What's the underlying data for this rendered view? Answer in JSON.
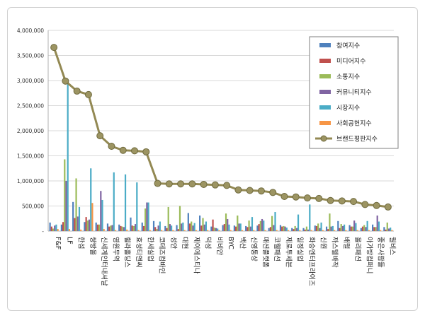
{
  "chart_data": {
    "type": "bar",
    "title": "",
    "xlabel": "",
    "ylabel": "",
    "ylim": [
      0,
      4000000
    ],
    "yticks": [
      0,
      500000,
      1000000,
      1500000,
      2000000,
      2500000,
      3000000,
      3500000,
      4000000
    ],
    "ytick_labels": [
      "-",
      "500,000",
      "1,000,000",
      "1,500,000",
      "2,000,000",
      "2,500,000",
      "3,000,000",
      "3,500,000",
      "4,000,000"
    ],
    "grid": true,
    "legend_position": "top-right",
    "categories": [
      "F&F",
      "LF",
      "한섬",
      "쌍방울",
      "신세계인터내셔날",
      "영원무역",
      "휠라홀딩스",
      "효성티앤씨",
      "한세실업",
      "코데즈컴바인",
      "성안",
      "대현",
      "제이에스티나",
      "덕성",
      "비비안",
      "BYC",
      "백산",
      "신영통상",
      "패션플랫폼",
      "코웰패션",
      "제로투세븐",
      "일정실업",
      "화승엔터프라이즈",
      "신원",
      "까스텔바작",
      "배럴",
      "올리패션",
      "아가방컴퍼니",
      "좋은사람들",
      "월비스"
    ],
    "series": [
      {
        "name": "참여지수",
        "color": "#4f81bd",
        "kind": "bar",
        "values": [
          170000,
          130000,
          580000,
          180000,
          170000,
          150000,
          130000,
          270000,
          170000,
          200000,
          100000,
          120000,
          360000,
          310000,
          90000,
          120000,
          110000,
          100000,
          110000,
          60000,
          120000,
          60000,
          60000,
          110000,
          90000,
          200000,
          120000,
          60000,
          130000,
          80000
        ]
      },
      {
        "name": "미디어지수",
        "color": "#c0504d",
        "kind": "bar",
        "values": [
          90000,
          180000,
          260000,
          280000,
          130000,
          90000,
          100000,
          110000,
          100000,
          80000,
          60000,
          40000,
          150000,
          110000,
          230000,
          140000,
          90000,
          80000,
          140000,
          80000,
          90000,
          40000,
          30000,
          100000,
          40000,
          60000,
          90000,
          90000,
          80000,
          30000
        ]
      },
      {
        "name": "소통지수",
        "color": "#9bbb59",
        "kind": "bar",
        "values": [
          50000,
          1430000,
          1050000,
          210000,
          130000,
          110000,
          90000,
          100000,
          450000,
          40000,
          480000,
          500000,
          190000,
          260000,
          70000,
          350000,
          310000,
          210000,
          200000,
          300000,
          100000,
          100000,
          90000,
          150000,
          350000,
          140000,
          90000,
          120000,
          80000,
          170000
        ]
      },
      {
        "name": "커뮤니티지수",
        "color": "#8064a2",
        "kind": "bar",
        "values": [
          110000,
          1000000,
          290000,
          230000,
          800000,
          120000,
          80000,
          140000,
          570000,
          110000,
          140000,
          150000,
          110000,
          130000,
          60000,
          240000,
          150000,
          90000,
          240000,
          120000,
          90000,
          60000,
          30000,
          60000,
          90000,
          100000,
          210000,
          80000,
          310000,
          50000
        ]
      },
      {
        "name": "시장지수",
        "color": "#4bacc6",
        "kind": "bar",
        "values": [
          130000,
          3020000,
          480000,
          1250000,
          620000,
          1170000,
          1130000,
          970000,
          570000,
          190000,
          110000,
          170000,
          160000,
          190000,
          50000,
          130000,
          150000,
          280000,
          210000,
          380000,
          70000,
          330000,
          530000,
          170000,
          100000,
          130000,
          160000,
          200000,
          190000,
          70000
        ]
      },
      {
        "name": "사회공헌지수",
        "color": "#f79646",
        "kind": "bar",
        "values": [
          40000,
          40000,
          30000,
          560000,
          40000,
          20000,
          30000,
          20000,
          20000,
          20000,
          20000,
          20000,
          20000,
          20000,
          20000,
          20000,
          20000,
          20000,
          20000,
          20000,
          20000,
          20000,
          20000,
          20000,
          20000,
          20000,
          20000,
          20000,
          20000,
          20000
        ]
      },
      {
        "name": "브랜드평판지수",
        "color": "#938953",
        "kind": "line",
        "values": [
          3660000,
          2990000,
          2790000,
          2720000,
          1900000,
          1690000,
          1610000,
          1600000,
          1580000,
          950000,
          940000,
          940000,
          940000,
          930000,
          920000,
          910000,
          820000,
          810000,
          800000,
          770000,
          690000,
          680000,
          660000,
          650000,
          610000,
          600000,
          590000,
          530000,
          510000,
          480000
        ]
      }
    ]
  }
}
